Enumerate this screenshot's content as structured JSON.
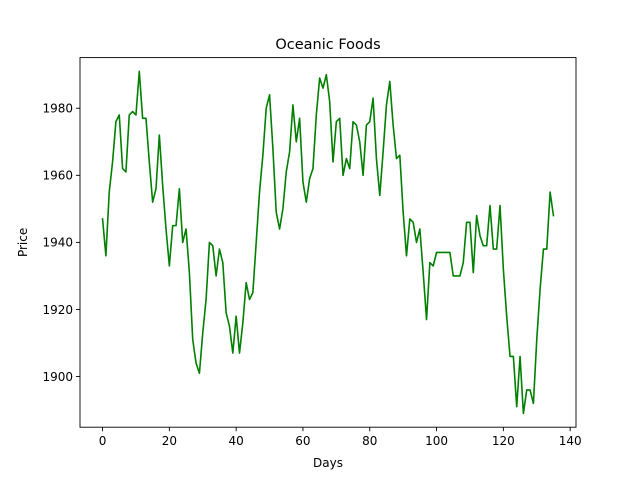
{
  "chart_data": {
    "type": "line",
    "title": "Oceanic Foods",
    "xlabel": "Days",
    "ylabel": "Price",
    "xlim": [
      -6.75,
      141.75
    ],
    "ylim": [
      1884.9,
      1995.1
    ],
    "xticks": [
      0,
      20,
      40,
      60,
      80,
      100,
      120,
      140
    ],
    "yticks": [
      1900,
      1920,
      1940,
      1960,
      1980
    ],
    "grid": false,
    "legend": "none",
    "series": [
      {
        "color": "#008000",
        "x": [
          0,
          1,
          2,
          3,
          4,
          5,
          6,
          7,
          8,
          9,
          10,
          11,
          12,
          13,
          14,
          15,
          16,
          17,
          18,
          19,
          20,
          21,
          22,
          23,
          24,
          25,
          26,
          27,
          28,
          29,
          30,
          31,
          32,
          33,
          34,
          35,
          36,
          37,
          38,
          39,
          40,
          41,
          42,
          43,
          44,
          45,
          46,
          47,
          48,
          49,
          50,
          51,
          52,
          53,
          54,
          55,
          56,
          57,
          58,
          59,
          60,
          61,
          62,
          63,
          64,
          65,
          66,
          67,
          68,
          69,
          70,
          71,
          72,
          73,
          74,
          75,
          76,
          77,
          78,
          79,
          80,
          81,
          82,
          83,
          84,
          85,
          86,
          87,
          88,
          89,
          90,
          91,
          92,
          93,
          94,
          95,
          96,
          97,
          98,
          99,
          100,
          101,
          102,
          103,
          104,
          105,
          106,
          107,
          108,
          109,
          110,
          111,
          112,
          113,
          114,
          115,
          116,
          117,
          118,
          119,
          120,
          121,
          122,
          123,
          124,
          125,
          126,
          127,
          128,
          129,
          130,
          131,
          132,
          133,
          134,
          135
        ],
        "values": [
          1947,
          1936,
          1955,
          1964,
          1976,
          1978,
          1962,
          1961,
          1978,
          1979,
          1978,
          1991,
          1977,
          1977,
          1964,
          1952,
          1956,
          1972,
          1957,
          1944,
          1933,
          1945,
          1945,
          1956,
          1940,
          1944,
          1931,
          1911,
          1904,
          1901,
          1913,
          1923,
          1940,
          1939,
          1930,
          1938,
          1934,
          1919,
          1915,
          1907,
          1918,
          1907,
          1916,
          1928,
          1923,
          1925,
          1940,
          1955,
          1966,
          1980,
          1984,
          1968,
          1949,
          1944,
          1950,
          1961,
          1967,
          1981,
          1970,
          1977,
          1958,
          1952,
          1959,
          1962,
          1978,
          1989,
          1986,
          1990,
          1982,
          1964,
          1976,
          1977,
          1960,
          1965,
          1962,
          1976,
          1975,
          1970,
          1960,
          1975,
          1976,
          1983,
          1965,
          1954,
          1967,
          1981,
          1988,
          1975,
          1965,
          1966,
          1949,
          1936,
          1947,
          1946,
          1940,
          1944,
          1931,
          1917,
          1934,
          1933,
          1937,
          1937,
          1937,
          1937,
          1937,
          1930,
          1930,
          1930,
          1934,
          1946,
          1946,
          1931,
          1948,
          1942,
          1939,
          1939,
          1951,
          1938,
          1938,
          1951,
          1932,
          1918,
          1906,
          1906,
          1891,
          1906,
          1889,
          1896,
          1896,
          1892,
          1911,
          1926,
          1938,
          1938,
          1955,
          1948
        ]
      }
    ]
  }
}
